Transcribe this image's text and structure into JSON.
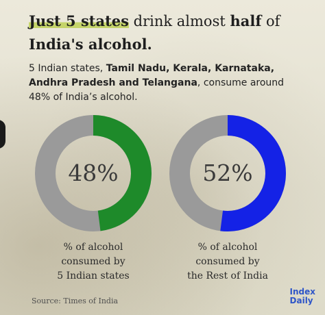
{
  "title": {
    "highlight": "Just 5 states",
    "part1": " drink almost ",
    "bold": "half",
    "part2": " of",
    "line2": "India's alcohol."
  },
  "subtitle": {
    "lead": "5 Indian states, ",
    "states": "Tamil Nadu, Kerala, Karnataka, Andhra Pradesh and Telangana",
    "tail": ", consume around 48% of India’s alcohol."
  },
  "colors": {
    "track": "#9a9a9a",
    "series_1": "#1e8a2a",
    "series_2": "#1422e6"
  },
  "chart_data": [
    {
      "type": "pie",
      "label": "48%",
      "value": 48,
      "caption": [
        "% of alcohol",
        "consumed by",
        "5 Indian states"
      ]
    },
    {
      "type": "pie",
      "label": "52%",
      "value": 52,
      "caption": [
        "% of alcohol",
        "consumed by",
        "the Rest of India"
      ]
    }
  ],
  "source": "Source:  Times of India",
  "brand": {
    "line1": "Index",
    "line2": "Daily"
  }
}
